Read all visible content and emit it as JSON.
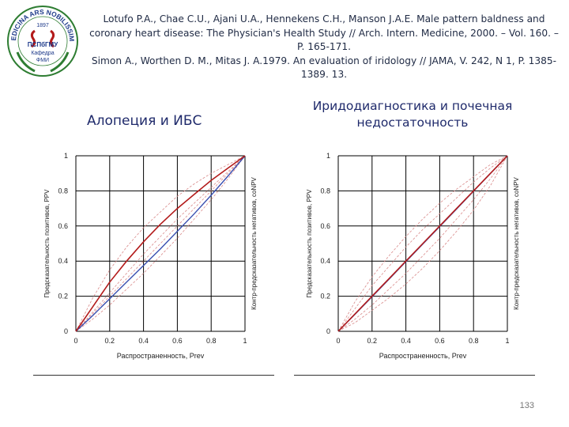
{
  "logo": {
    "arc_text": "MEDICINA ARS NOBILISSIMA",
    "year": "1897",
    "org": "ПСПбГМУ",
    "dept": "Кафедра",
    "dept2": "ФМИ"
  },
  "references": [
    "Lotufo P.A., Chae C.U., Ajani U.A., Hennekens C.H., Manson J.A.E. Male pattern baldness and coronary heart disease: The Physician's Health Study // Arch. Intern. Medicine, 2000. – Vol. 160. – P. 165-171.",
    "Simon A., Worthen D. M., Mitas J. A.1979. An evaluation of iridology // JAMA, V. 242, N 1, P. 1385-1389. 13."
  ],
  "page_number": "133",
  "colors": {
    "main_curve": "#b31b1b",
    "band_curve": "#d98a8a",
    "diagonal": "#3a4fb0",
    "grid": "#000000"
  },
  "chart_data": [
    {
      "type": "line",
      "title": "Алопеция и ИБС",
      "xlabel": "Распространенность, Prev",
      "ylabel": "Предсказательность позитивов, PPV",
      "ylabel_right": "Контр-предсказательность негативов, coNPV",
      "xlim": [
        0,
        1
      ],
      "ylim": [
        0,
        1
      ],
      "x_ticks": [
        "0",
        "0.2",
        "0.4",
        "0.6",
        "0.8",
        "1"
      ],
      "y_ticks": [
        "0",
        "0.2",
        "0.4",
        "0.6",
        "0.8",
        "1"
      ],
      "grid": true,
      "legend": "none",
      "series": [
        {
          "role": "ppv",
          "style": "main",
          "x": [
            0,
            0.1,
            0.2,
            0.3,
            0.4,
            0.5,
            0.6,
            0.7,
            0.8,
            0.9,
            1
          ],
          "y": [
            0,
            0.14,
            0.28,
            0.4,
            0.51,
            0.61,
            0.7,
            0.78,
            0.86,
            0.93,
            1
          ]
        },
        {
          "role": "ppv-upper",
          "style": "band",
          "x": [
            0,
            0.1,
            0.2,
            0.3,
            0.4,
            0.5,
            0.6,
            0.7,
            0.8,
            0.9,
            1
          ],
          "y": [
            0,
            0.19,
            0.35,
            0.48,
            0.59,
            0.68,
            0.77,
            0.84,
            0.9,
            0.95,
            1
          ]
        },
        {
          "role": "ppv-lower",
          "style": "band",
          "x": [
            0,
            0.1,
            0.2,
            0.3,
            0.4,
            0.5,
            0.6,
            0.7,
            0.8,
            0.9,
            1
          ],
          "y": [
            0,
            0.11,
            0.22,
            0.33,
            0.44,
            0.54,
            0.64,
            0.73,
            0.82,
            0.91,
            1
          ]
        },
        {
          "role": "conpv",
          "style": "diagonal",
          "x": [
            0,
            0.1,
            0.2,
            0.3,
            0.4,
            0.5,
            0.6,
            0.7,
            0.8,
            0.9,
            1
          ],
          "y": [
            0,
            0.09,
            0.185,
            0.28,
            0.375,
            0.47,
            0.57,
            0.67,
            0.775,
            0.885,
            1
          ]
        },
        {
          "role": "conpv-lower",
          "style": "band",
          "x": [
            0,
            0.1,
            0.2,
            0.3,
            0.4,
            0.5,
            0.6,
            0.7,
            0.8,
            0.9,
            1
          ],
          "y": [
            0,
            0.07,
            0.15,
            0.24,
            0.33,
            0.43,
            0.53,
            0.64,
            0.75,
            0.87,
            1
          ]
        },
        {
          "role": "conpv-upper",
          "style": "band",
          "x": [
            0,
            0.1,
            0.2,
            0.3,
            0.4,
            0.5,
            0.6,
            0.7,
            0.8,
            0.9,
            1
          ],
          "y": [
            0,
            0.1,
            0.2,
            0.3,
            0.4,
            0.5,
            0.6,
            0.7,
            0.8,
            0.9,
            1
          ]
        }
      ]
    },
    {
      "type": "line",
      "title": "Иридодиагностика и почечная недостаточность",
      "xlabel": "Распространенность, Prev",
      "ylabel": "Предсказательность позитивов, PPV",
      "ylabel_right": "Контр-предсказательность негативов, coNPV",
      "xlim": [
        0,
        1
      ],
      "ylim": [
        0,
        1
      ],
      "x_ticks": [
        "0",
        "0.2",
        "0.4",
        "0.6",
        "0.8",
        "1"
      ],
      "y_ticks": [
        "0",
        "0.2",
        "0.4",
        "0.6",
        "0.8",
        "1"
      ],
      "grid": true,
      "legend": "none",
      "series": [
        {
          "role": "ppv",
          "style": "main",
          "x": [
            0,
            0.1,
            0.2,
            0.3,
            0.4,
            0.5,
            0.6,
            0.7,
            0.8,
            0.9,
            1
          ],
          "y": [
            0,
            0.1,
            0.2,
            0.3,
            0.4,
            0.5,
            0.6,
            0.7,
            0.8,
            0.9,
            1
          ]
        },
        {
          "role": "conpv",
          "style": "diagonal",
          "x": [
            0,
            0.1,
            0.2,
            0.3,
            0.4,
            0.5,
            0.6,
            0.7,
            0.8,
            0.9,
            1
          ],
          "y": [
            0,
            0.098,
            0.197,
            0.297,
            0.397,
            0.497,
            0.597,
            0.697,
            0.798,
            0.899,
            1
          ]
        },
        {
          "role": "band-1",
          "style": "band",
          "x": [
            0,
            0.1,
            0.2,
            0.3,
            0.4,
            0.5,
            0.6,
            0.7,
            0.8,
            0.9,
            1
          ],
          "y": [
            0,
            0.17,
            0.31,
            0.43,
            0.54,
            0.64,
            0.73,
            0.81,
            0.88,
            0.95,
            1
          ]
        },
        {
          "role": "band-2",
          "style": "band",
          "x": [
            0,
            0.1,
            0.2,
            0.3,
            0.4,
            0.5,
            0.6,
            0.7,
            0.8,
            0.9,
            1
          ],
          "y": [
            0,
            0.13,
            0.26,
            0.37,
            0.48,
            0.58,
            0.67,
            0.76,
            0.85,
            0.93,
            1
          ]
        },
        {
          "role": "band-3",
          "style": "band",
          "x": [
            0,
            0.1,
            0.2,
            0.3,
            0.4,
            0.5,
            0.6,
            0.7,
            0.8,
            0.9,
            1
          ],
          "y": [
            0,
            0.07,
            0.15,
            0.24,
            0.33,
            0.43,
            0.53,
            0.64,
            0.75,
            0.87,
            1
          ]
        },
        {
          "role": "band-4",
          "style": "band",
          "x": [
            0,
            0.1,
            0.2,
            0.3,
            0.4,
            0.5,
            0.6,
            0.7,
            0.8,
            0.9,
            1
          ],
          "y": [
            0,
            0.05,
            0.12,
            0.19,
            0.27,
            0.36,
            0.46,
            0.57,
            0.69,
            0.83,
            1
          ]
        }
      ]
    }
  ]
}
